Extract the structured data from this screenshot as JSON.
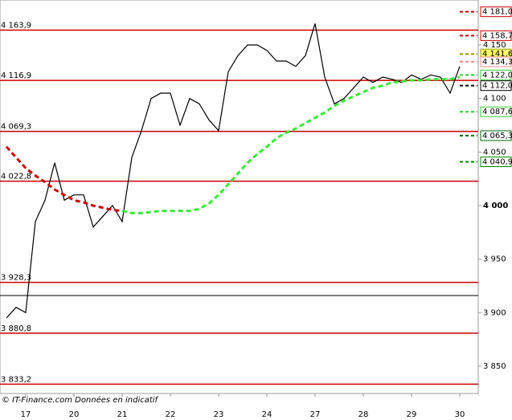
{
  "chart_data": {
    "type": "line",
    "categories": [
      null,
      null,
      "17",
      null,
      null,
      null,
      null,
      "20",
      null,
      null,
      null,
      null,
      "21",
      null,
      null,
      null,
      null,
      "22",
      null,
      null,
      null,
      null,
      "23",
      null,
      null,
      null,
      null,
      "24",
      null,
      null,
      null,
      null,
      "27",
      null,
      null,
      null,
      null,
      "28",
      null,
      null,
      null,
      null,
      "29",
      null,
      null,
      null,
      null,
      "30"
    ],
    "series": [
      {
        "color": "#000000",
        "dashed": false,
        "values": [
          3895,
          3905,
          3900,
          3985,
          4005,
          4040,
          4005,
          4010,
          4010,
          3980,
          3990,
          4000,
          3985,
          4045,
          4070,
          4100,
          4105,
          4105,
          4075,
          4100,
          4095,
          4080,
          4070,
          4125,
          4140,
          4150,
          4150,
          4145,
          4135,
          4135,
          4130,
          4140,
          4170,
          4120,
          4095,
          4100,
          4110,
          4120,
          4115,
          4120,
          4118,
          4115,
          4122,
          4118,
          4122,
          4120,
          4105,
          4130
        ]
      },
      {
        "color": "#cc0000",
        "dashed": true,
        "values": [
          4055,
          4045,
          4035,
          4028,
          4022,
          4015,
          4010,
          4005,
          4003,
          4000,
          3998,
          3996,
          3995,
          null,
          null,
          null,
          null,
          null,
          null,
          null,
          null,
          null,
          null,
          null,
          null,
          null,
          null,
          null,
          null,
          null,
          null,
          null,
          null,
          null,
          null,
          null,
          null,
          null,
          null,
          null,
          null,
          null,
          null,
          null,
          null,
          null,
          null,
          null
        ]
      },
      {
        "color": "#33ee33",
        "dashed": true,
        "values": [
          null,
          null,
          null,
          null,
          null,
          null,
          null,
          null,
          null,
          null,
          null,
          null,
          3995,
          3993,
          3993,
          3994,
          3995,
          3995,
          3995,
          3995,
          3997,
          4002,
          4010,
          4020,
          4030,
          4040,
          4048,
          4055,
          4063,
          4068,
          4072,
          4077,
          4082,
          4087,
          4093,
          4098,
          4102,
          4106,
          4110,
          4112,
          4115,
          4116,
          4117,
          4117,
          4118,
          4118,
          4118,
          4120
        ]
      }
    ],
    "ylim": [
      3824.5,
      4192
    ],
    "yticks": [
      {
        "value": 4150,
        "label": "4 150"
      },
      {
        "value": 4100,
        "label": "4 100"
      },
      {
        "value": 4050,
        "label": "4 050"
      },
      {
        "value": 4000,
        "label": "4 000"
      },
      {
        "value": 3950,
        "label": "3 950"
      },
      {
        "value": 3900,
        "label": "3 900"
      },
      {
        "value": 3850,
        "label": "3 850"
      }
    ],
    "levels": [
      {
        "value": 4163.9,
        "label": "4 163,9",
        "color": "#cc0000"
      },
      {
        "value": 4116.9,
        "label": "4 116,9",
        "color": "#cc0000"
      },
      {
        "value": 4069.3,
        "label": "4 069,3",
        "color": "#cc0000"
      },
      {
        "value": 4022.8,
        "label": "4 022,8",
        "color": "#cc0000"
      },
      {
        "value": 3928.3,
        "label": "3 928,3",
        "color": "#cc0000"
      },
      {
        "value": 3880.8,
        "label": "3 880,8",
        "color": "#cc0000"
      },
      {
        "value": 3833.2,
        "label": "3 833,2",
        "color": "#cc0000"
      }
    ],
    "black_level": 3916,
    "right_markers": [
      {
        "value": 4181.0,
        "label": "4 181,0",
        "color": "#cc0000"
      },
      {
        "value": 4158.7,
        "label": "4 158,7",
        "color": "#cc0000"
      },
      {
        "value": 4141.6,
        "label": "4 141,6",
        "color": "#999900"
      },
      {
        "value": 4134.3,
        "label": "4 134,3",
        "color": "#ee8888"
      },
      {
        "value": 4122.0,
        "label": "4 122,0",
        "color": "#33cc33"
      },
      {
        "value": 4112.0,
        "label": "4 112,0",
        "color": "#000000"
      },
      {
        "value": 4087.6,
        "label": "4 087,6",
        "color": "#33cc33"
      },
      {
        "value": 4065.3,
        "label": "4 065,3",
        "color": "#006600"
      },
      {
        "value": 4040.9,
        "label": "4 040,9",
        "color": "#008800"
      }
    ],
    "footer": "© IT-Finance.com  Données en indicatif"
  }
}
